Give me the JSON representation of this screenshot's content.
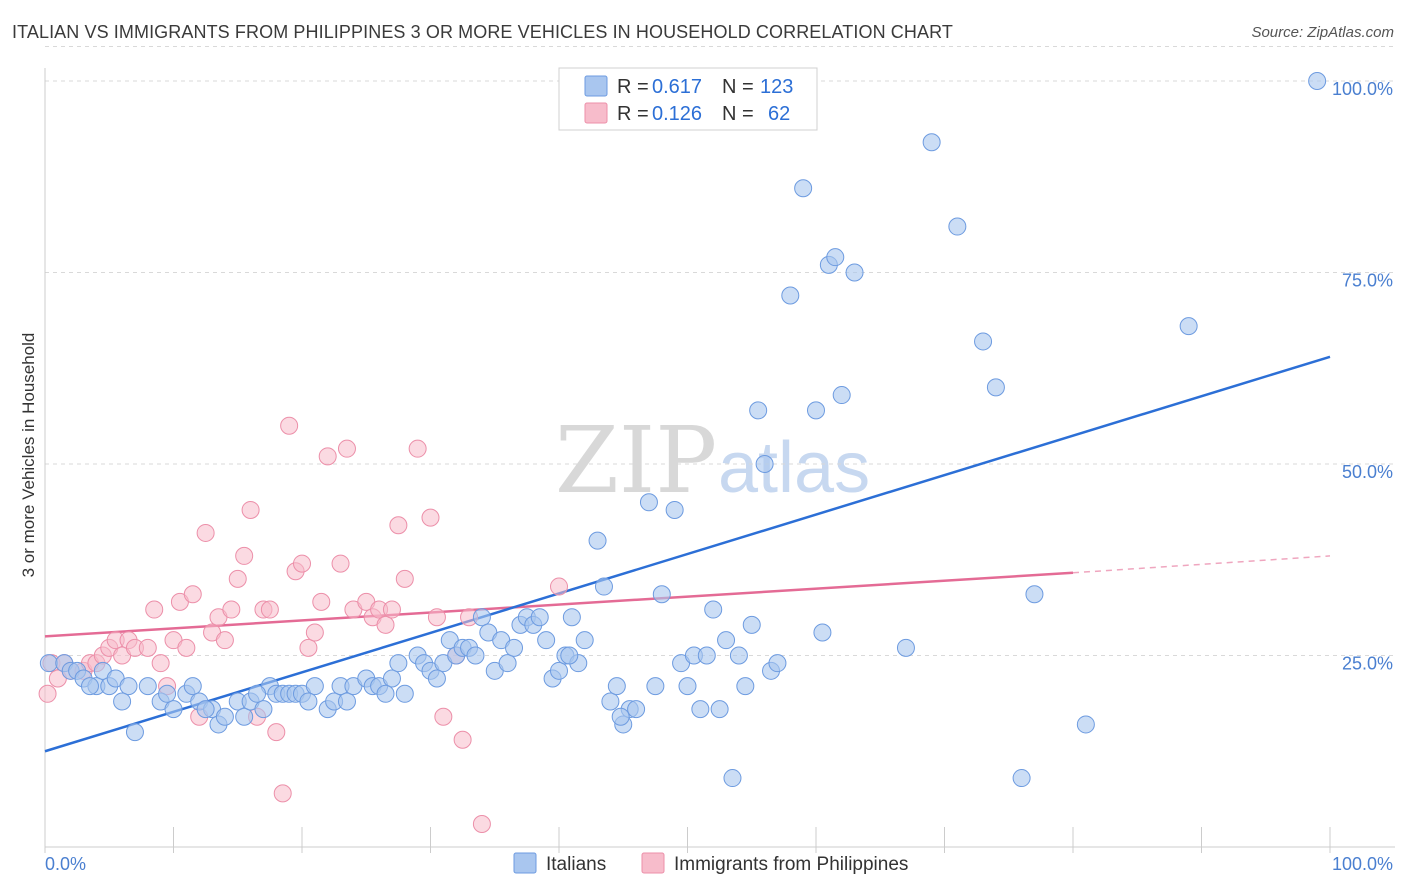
{
  "title": "ITALIAN VS IMMIGRANTS FROM PHILIPPINES 3 OR MORE VEHICLES IN HOUSEHOLD CORRELATION CHART",
  "source": "Source: ZipAtlas.com",
  "watermark": {
    "part1": "ZIP",
    "part2": "atlas"
  },
  "colors": {
    "blue_fill": "#a9c6ef",
    "blue_stroke": "#6d9be0",
    "blue_line": "#2c6fd6",
    "pink_fill": "#f7bccb",
    "pink_stroke": "#ec8fa9",
    "pink_line": "#e46b95",
    "grid": "#d9d9d9",
    "tick_text": "#4a7fd0"
  },
  "legend": {
    "rows": [
      {
        "r_label": "R =",
        "r_value": "0.617",
        "n_label": "N =",
        "n_value": "123"
      },
      {
        "r_label": "R =",
        "r_value": "0.126",
        "n_label": "N =",
        "n_value": "62"
      }
    ]
  },
  "bottom_legend": [
    "Italians",
    "Immigrants from Philippines"
  ],
  "chart_data": {
    "type": "scatter",
    "title": "ITALIAN VS IMMIGRANTS FROM PHILIPPINES 3 OR MORE VEHICLES IN HOUSEHOLD CORRELATION CHART",
    "xlabel": "",
    "ylabel": "3 or more Vehicles in Household",
    "xlim": [
      0,
      100
    ],
    "ylim": [
      0,
      105
    ],
    "x_tick_labels": [
      "0.0%",
      "100.0%"
    ],
    "y_tick_labels": [
      "25.0%",
      "50.0%",
      "75.0%",
      "100.0%"
    ],
    "y_ticks": [
      25,
      50,
      75,
      100
    ],
    "grid": true,
    "legend_position": "top-center",
    "series": [
      {
        "name": "Italians",
        "r": 0.617,
        "n": 123,
        "trend": {
          "x": [
            0,
            100
          ],
          "y": [
            12.5,
            64
          ]
        },
        "points": [
          [
            0.3,
            24
          ],
          [
            1.5,
            24
          ],
          [
            2,
            23
          ],
          [
            2.5,
            23
          ],
          [
            3,
            22
          ],
          [
            4,
            21
          ],
          [
            4.5,
            23
          ],
          [
            5,
            21
          ],
          [
            5.5,
            22
          ],
          [
            6.5,
            21
          ],
          [
            7,
            15
          ],
          [
            8,
            21
          ],
          [
            9,
            19
          ],
          [
            10,
            18
          ],
          [
            11,
            20
          ],
          [
            11.5,
            21
          ],
          [
            12,
            19
          ],
          [
            13,
            18
          ],
          [
            13.5,
            16
          ],
          [
            14,
            17
          ],
          [
            15,
            19
          ],
          [
            15.5,
            17
          ],
          [
            16,
            19
          ],
          [
            17,
            18
          ],
          [
            17.5,
            21
          ],
          [
            18,
            20
          ],
          [
            18.5,
            20
          ],
          [
            19,
            20
          ],
          [
            19.5,
            20
          ],
          [
            20,
            20
          ],
          [
            21,
            21
          ],
          [
            22,
            18
          ],
          [
            22.5,
            19
          ],
          [
            23,
            21
          ],
          [
            23.5,
            19
          ],
          [
            24,
            21
          ],
          [
            25,
            22
          ],
          [
            25.5,
            21
          ],
          [
            26,
            21
          ],
          [
            27,
            22
          ],
          [
            27.5,
            24
          ],
          [
            28,
            20
          ],
          [
            29,
            25
          ],
          [
            29.5,
            24
          ],
          [
            30,
            23
          ],
          [
            31,
            24
          ],
          [
            31.5,
            27
          ],
          [
            32,
            25
          ],
          [
            32.5,
            26
          ],
          [
            33,
            26
          ],
          [
            33.5,
            25
          ],
          [
            34,
            30
          ],
          [
            34.5,
            28
          ],
          [
            35,
            23
          ],
          [
            35.5,
            27
          ],
          [
            36,
            24
          ],
          [
            37,
            29
          ],
          [
            37.5,
            30
          ],
          [
            38,
            29
          ],
          [
            38.5,
            30
          ],
          [
            39,
            27
          ],
          [
            39.5,
            22
          ],
          [
            40,
            23
          ],
          [
            40.5,
            25
          ],
          [
            41,
            30
          ],
          [
            41.5,
            24
          ],
          [
            42,
            27
          ],
          [
            43,
            40
          ],
          [
            43.5,
            34
          ],
          [
            44,
            19
          ],
          [
            44.5,
            21
          ],
          [
            45,
            16
          ],
          [
            45.5,
            18
          ],
          [
            46,
            18
          ],
          [
            47,
            45
          ],
          [
            47.5,
            21
          ],
          [
            48,
            33
          ],
          [
            49,
            44
          ],
          [
            49.5,
            24
          ],
          [
            50,
            21
          ],
          [
            50.5,
            25
          ],
          [
            51,
            18
          ],
          [
            51.5,
            25
          ],
          [
            52,
            31
          ],
          [
            52.5,
            18
          ],
          [
            53,
            27
          ],
          [
            53.5,
            9
          ],
          [
            54,
            25
          ],
          [
            54.5,
            21
          ],
          [
            55,
            29
          ],
          [
            55.5,
            57
          ],
          [
            56,
            50
          ],
          [
            56.5,
            23
          ],
          [
            57,
            24
          ],
          [
            58,
            72
          ],
          [
            59,
            86
          ],
          [
            60,
            57
          ],
          [
            60.5,
            28
          ],
          [
            61,
            76
          ],
          [
            61.5,
            77
          ],
          [
            62,
            59
          ],
          [
            63,
            75
          ],
          [
            67,
            26
          ],
          [
            69,
            92
          ],
          [
            71,
            81
          ],
          [
            73,
            66
          ],
          [
            74,
            60
          ],
          [
            76,
            9
          ],
          [
            77,
            33
          ],
          [
            81,
            16
          ],
          [
            89,
            68
          ],
          [
            99,
            100
          ],
          [
            3.5,
            21
          ],
          [
            6,
            19
          ],
          [
            9.5,
            20
          ],
          [
            12.5,
            18
          ],
          [
            16.5,
            20
          ],
          [
            20.5,
            19
          ],
          [
            26.5,
            20
          ],
          [
            30.5,
            22
          ],
          [
            36.5,
            26
          ],
          [
            40.8,
            25
          ],
          [
            44.8,
            17
          ]
        ]
      },
      {
        "name": "Immigrants from Philippines",
        "r": 0.126,
        "n": 62,
        "trend": {
          "x": [
            0,
            80
          ],
          "y": [
            27.5,
            35.8
          ]
        },
        "trend_dashed": {
          "x": [
            80,
            100
          ],
          "y": [
            35.8,
            38
          ]
        },
        "points": [
          [
            0.2,
            20
          ],
          [
            0.5,
            24
          ],
          [
            1,
            22
          ],
          [
            1.5,
            24
          ],
          [
            2,
            23
          ],
          [
            3,
            23
          ],
          [
            3.5,
            24
          ],
          [
            4,
            24
          ],
          [
            4.5,
            25
          ],
          [
            5,
            26
          ],
          [
            5.5,
            27
          ],
          [
            6,
            25
          ],
          [
            6.5,
            27
          ],
          [
            7,
            26
          ],
          [
            8,
            26
          ],
          [
            8.5,
            31
          ],
          [
            9,
            24
          ],
          [
            9.5,
            21
          ],
          [
            10,
            27
          ],
          [
            10.5,
            32
          ],
          [
            11,
            26
          ],
          [
            11.5,
            33
          ],
          [
            12,
            17
          ],
          [
            12.5,
            41
          ],
          [
            13,
            28
          ],
          [
            13.5,
            30
          ],
          [
            14,
            27
          ],
          [
            14.5,
            31
          ],
          [
            15,
            35
          ],
          [
            15.5,
            38
          ],
          [
            16,
            44
          ],
          [
            16.5,
            17
          ],
          [
            17,
            31
          ],
          [
            17.5,
            31
          ],
          [
            18,
            15
          ],
          [
            18.5,
            7
          ],
          [
            19,
            55
          ],
          [
            19.5,
            36
          ],
          [
            20,
            37
          ],
          [
            20.5,
            26
          ],
          [
            21,
            28
          ],
          [
            21.5,
            32
          ],
          [
            22,
            51
          ],
          [
            23,
            37
          ],
          [
            23.5,
            52
          ],
          [
            24,
            31
          ],
          [
            25,
            32
          ],
          [
            25.5,
            30
          ],
          [
            26,
            31
          ],
          [
            26.5,
            29
          ],
          [
            27,
            31
          ],
          [
            27.5,
            42
          ],
          [
            28,
            35
          ],
          [
            29,
            52
          ],
          [
            30,
            43
          ],
          [
            30.5,
            30
          ],
          [
            31,
            17
          ],
          [
            32,
            25
          ],
          [
            32.5,
            14
          ],
          [
            33,
            30
          ],
          [
            34,
            3
          ],
          [
            40,
            34
          ]
        ]
      }
    ]
  }
}
